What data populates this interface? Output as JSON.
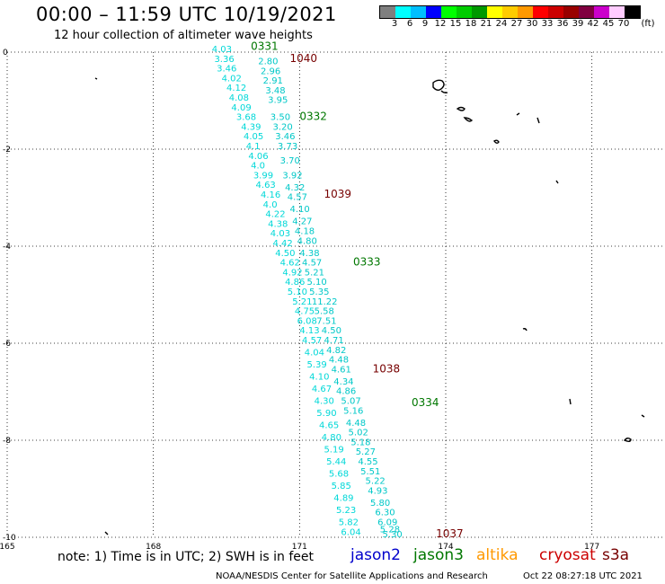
{
  "header": {
    "title": "00:00 – 11:59 UTC 10/19/2021",
    "subtitle": "12 hour collection of altimeter wave heights"
  },
  "colorbar": {
    "unit": "(ft)",
    "colors": [
      "#7f7f7f",
      "#00ffff",
      "#00bfff",
      "#0000ff",
      "#00ff00",
      "#00cc00",
      "#009900",
      "#ffff00",
      "#ffcc00",
      "#ff9900",
      "#ff0000",
      "#cc0000",
      "#990000",
      "#800040",
      "#cc00cc",
      "#ffccff",
      "#000000"
    ],
    "labels": [
      "3",
      "6",
      "9",
      "12",
      "15",
      "18",
      "21",
      "24",
      "27",
      "30",
      "33",
      "36",
      "39",
      "42",
      "45",
      "70"
    ]
  },
  "axes": {
    "lon_labels": [
      "165",
      "168",
      "171",
      "174",
      "177"
    ],
    "lat_labels": [
      "0",
      "-2",
      "-4",
      "-6",
      "-8",
      "-10"
    ]
  },
  "chart_data": {
    "type": "map",
    "projection": "lon/lat",
    "xlim": [
      165,
      178.5
    ],
    "ylim": [
      -10,
      0
    ],
    "time_markers": [
      {
        "label": "0331",
        "satellite": "jason3",
        "lon": 170.0,
        "lat": 0.05
      },
      {
        "label": "0332",
        "satellite": "jason3",
        "lon": 171.0,
        "lat": -1.4
      },
      {
        "label": "0333",
        "satellite": "jason3",
        "lon": 172.1,
        "lat": -4.4
      },
      {
        "label": "0334",
        "satellite": "jason3",
        "lon": 173.3,
        "lat": -7.3
      },
      {
        "label": "1040",
        "satellite": "s3a",
        "lon": 170.8,
        "lat": -0.2
      },
      {
        "label": "1039",
        "satellite": "s3a",
        "lon": 171.5,
        "lat": -3.0
      },
      {
        "label": "1038",
        "satellite": "s3a",
        "lon": 172.5,
        "lat": -6.6
      },
      {
        "label": "1037",
        "satellite": "s3a",
        "lon": 173.8,
        "lat": -10.0
      }
    ],
    "track_jason3_swh": [
      {
        "lon": 169.2,
        "lat": 0.0,
        "swh": "4.03"
      },
      {
        "lon": 169.25,
        "lat": -0.2,
        "swh": "3.36"
      },
      {
        "lon": 169.3,
        "lat": -0.4,
        "swh": "3.46"
      },
      {
        "lon": 169.4,
        "lat": -0.6,
        "swh": "4.02"
      },
      {
        "lon": 169.5,
        "lat": -0.8,
        "swh": "4.12"
      },
      {
        "lon": 169.55,
        "lat": -1.0,
        "swh": "4.08"
      },
      {
        "lon": 169.6,
        "lat": -1.2,
        "swh": "4.09"
      },
      {
        "lon": 169.7,
        "lat": -1.4,
        "swh": "3.68"
      },
      {
        "lon": 169.8,
        "lat": -1.6,
        "swh": "4.39"
      },
      {
        "lon": 169.85,
        "lat": -1.8,
        "swh": "4.05"
      },
      {
        "lon": 169.9,
        "lat": -2.0,
        "swh": "4.1"
      },
      {
        "lon": 169.95,
        "lat": -2.2,
        "swh": "4.06"
      },
      {
        "lon": 170.0,
        "lat": -2.4,
        "swh": "4.0"
      },
      {
        "lon": 170.05,
        "lat": -2.6,
        "swh": "3.99"
      },
      {
        "lon": 170.1,
        "lat": -2.8,
        "swh": "4.63"
      },
      {
        "lon": 170.2,
        "lat": -3.0,
        "swh": "4.16"
      },
      {
        "lon": 170.25,
        "lat": -3.2,
        "swh": "4.0"
      },
      {
        "lon": 170.3,
        "lat": -3.4,
        "swh": "4.22"
      },
      {
        "lon": 170.35,
        "lat": -3.6,
        "swh": "4.38"
      },
      {
        "lon": 170.4,
        "lat": -3.8,
        "swh": "4.03"
      },
      {
        "lon": 170.45,
        "lat": -4.0,
        "swh": "4.42"
      },
      {
        "lon": 170.5,
        "lat": -4.2,
        "swh": "4.50"
      },
      {
        "lon": 170.6,
        "lat": -4.4,
        "swh": "4.62"
      },
      {
        "lon": 170.65,
        "lat": -4.6,
        "swh": "4.92"
      },
      {
        "lon": 170.7,
        "lat": -4.8,
        "swh": "4.86"
      },
      {
        "lon": 170.75,
        "lat": -5.0,
        "swh": "5.10"
      },
      {
        "lon": 170.85,
        "lat": -5.2,
        "swh": "5.21"
      },
      {
        "lon": 170.9,
        "lat": -5.4,
        "swh": "4.75"
      },
      {
        "lon": 170.95,
        "lat": -5.6,
        "swh": "6.08"
      },
      {
        "lon": 171.0,
        "lat": -5.8,
        "swh": "4.13"
      },
      {
        "lon": 171.05,
        "lat": -6.0,
        "swh": "4.57"
      },
      {
        "lon": 171.1,
        "lat": -6.25,
        "swh": "4.04"
      },
      {
        "lon": 171.15,
        "lat": -6.5,
        "swh": "5.39"
      },
      {
        "lon": 171.2,
        "lat": -6.75,
        "swh": "4.10"
      },
      {
        "lon": 171.25,
        "lat": -7.0,
        "swh": "4.67"
      },
      {
        "lon": 171.3,
        "lat": -7.25,
        "swh": "4.30"
      },
      {
        "lon": 171.35,
        "lat": -7.5,
        "swh": "5.90"
      },
      {
        "lon": 171.4,
        "lat": -7.75,
        "swh": "4.65"
      },
      {
        "lon": 171.45,
        "lat": -8.0,
        "swh": "4.80"
      },
      {
        "lon": 171.5,
        "lat": -8.25,
        "swh": "5.19"
      },
      {
        "lon": 171.55,
        "lat": -8.5,
        "swh": "5.44"
      },
      {
        "lon": 171.6,
        "lat": -8.75,
        "swh": "5.68"
      },
      {
        "lon": 171.65,
        "lat": -9.0,
        "swh": "5.85"
      },
      {
        "lon": 171.7,
        "lat": -9.25,
        "swh": "4.89"
      },
      {
        "lon": 171.75,
        "lat": -9.5,
        "swh": "5.23"
      },
      {
        "lon": 171.8,
        "lat": -9.75,
        "swh": "5.82"
      },
      {
        "lon": 171.85,
        "lat": -9.95,
        "swh": "6.04"
      }
    ],
    "track_s3a_swh": [
      {
        "lon": 170.15,
        "lat": -0.25,
        "swh": "2.80"
      },
      {
        "lon": 170.2,
        "lat": -0.45,
        "swh": "2.96"
      },
      {
        "lon": 170.25,
        "lat": -0.65,
        "swh": "2.91"
      },
      {
        "lon": 170.3,
        "lat": -0.85,
        "swh": "3.48"
      },
      {
        "lon": 170.35,
        "lat": -1.05,
        "swh": "3.95"
      },
      {
        "lon": 170.4,
        "lat": -1.4,
        "swh": "3.50"
      },
      {
        "lon": 170.45,
        "lat": -1.6,
        "swh": "3.20"
      },
      {
        "lon": 170.5,
        "lat": -1.8,
        "swh": "3.46"
      },
      {
        "lon": 170.55,
        "lat": -2.0,
        "swh": "3.73"
      },
      {
        "lon": 170.6,
        "lat": -2.3,
        "swh": "3.70"
      },
      {
        "lon": 170.65,
        "lat": -2.6,
        "swh": "3.92"
      },
      {
        "lon": 170.7,
        "lat": -2.85,
        "swh": "4.32"
      },
      {
        "lon": 170.75,
        "lat": -3.05,
        "swh": "4.57"
      },
      {
        "lon": 170.8,
        "lat": -3.3,
        "swh": "4.10"
      },
      {
        "lon": 170.85,
        "lat": -3.55,
        "swh": "4.27"
      },
      {
        "lon": 170.9,
        "lat": -3.75,
        "swh": "4.18"
      },
      {
        "lon": 170.95,
        "lat": -3.95,
        "swh": "4.80"
      },
      {
        "lon": 171.0,
        "lat": -4.2,
        "swh": "4.38"
      },
      {
        "lon": 171.05,
        "lat": -4.4,
        "swh": "4.57"
      },
      {
        "lon": 171.1,
        "lat": -4.6,
        "swh": "5.21"
      },
      {
        "lon": 171.15,
        "lat": -4.8,
        "swh": "5.10"
      },
      {
        "lon": 171.2,
        "lat": -5.0,
        "swh": "5.35"
      },
      {
        "lon": 171.25,
        "lat": -5.2,
        "swh": "11.22"
      },
      {
        "lon": 171.3,
        "lat": -5.4,
        "swh": "5.58"
      },
      {
        "lon": 171.35,
        "lat": -5.6,
        "swh": "7.51"
      },
      {
        "lon": 171.45,
        "lat": -5.8,
        "swh": "4.50"
      },
      {
        "lon": 171.5,
        "lat": -6.0,
        "swh": "4.71"
      },
      {
        "lon": 171.55,
        "lat": -6.2,
        "swh": "4.82"
      },
      {
        "lon": 171.6,
        "lat": -6.4,
        "swh": "4.48"
      },
      {
        "lon": 171.65,
        "lat": -6.6,
        "swh": "4.61"
      },
      {
        "lon": 171.7,
        "lat": -6.85,
        "swh": "4.34"
      },
      {
        "lon": 171.75,
        "lat": -7.05,
        "swh": "4.86"
      },
      {
        "lon": 171.85,
        "lat": -7.25,
        "swh": "5.07"
      },
      {
        "lon": 171.9,
        "lat": -7.45,
        "swh": "5.16"
      },
      {
        "lon": 171.95,
        "lat": -7.7,
        "swh": "4.48"
      },
      {
        "lon": 172.0,
        "lat": -7.9,
        "swh": "5.02"
      },
      {
        "lon": 172.05,
        "lat": -8.1,
        "swh": "5.18"
      },
      {
        "lon": 172.15,
        "lat": -8.3,
        "swh": "5.27"
      },
      {
        "lon": 172.2,
        "lat": -8.5,
        "swh": "4.55"
      },
      {
        "lon": 172.25,
        "lat": -8.7,
        "swh": "5.51"
      },
      {
        "lon": 172.35,
        "lat": -8.9,
        "swh": "5.22"
      },
      {
        "lon": 172.4,
        "lat": -9.1,
        "swh": "4.93"
      },
      {
        "lon": 172.45,
        "lat": -9.35,
        "swh": "5.80"
      },
      {
        "lon": 172.55,
        "lat": -9.55,
        "swh": "6.30"
      },
      {
        "lon": 172.6,
        "lat": -9.75,
        "swh": "6.09"
      },
      {
        "lon": 172.65,
        "lat": -9.9,
        "swh": "5.28"
      },
      {
        "lon": 172.7,
        "lat": -10.0,
        "swh": "5.30"
      }
    ]
  },
  "footer": {
    "note": "note:  1) Time is in UTC;  2) SWH is in feet",
    "legend": [
      {
        "name": "jason2",
        "color": "#0000cc"
      },
      {
        "name": "jason3",
        "color": "#007700"
      },
      {
        "name": "altika",
        "color": "#ff9900"
      },
      {
        "name": "cryosat",
        "color": "#cc0000"
      },
      {
        "name": "s3a",
        "color": "#770000"
      }
    ],
    "credit": "NOAA/NESDIS Center for Satellite Applications and Research",
    "timestamp": "Oct 22 08:27:18 UTC 2021"
  }
}
